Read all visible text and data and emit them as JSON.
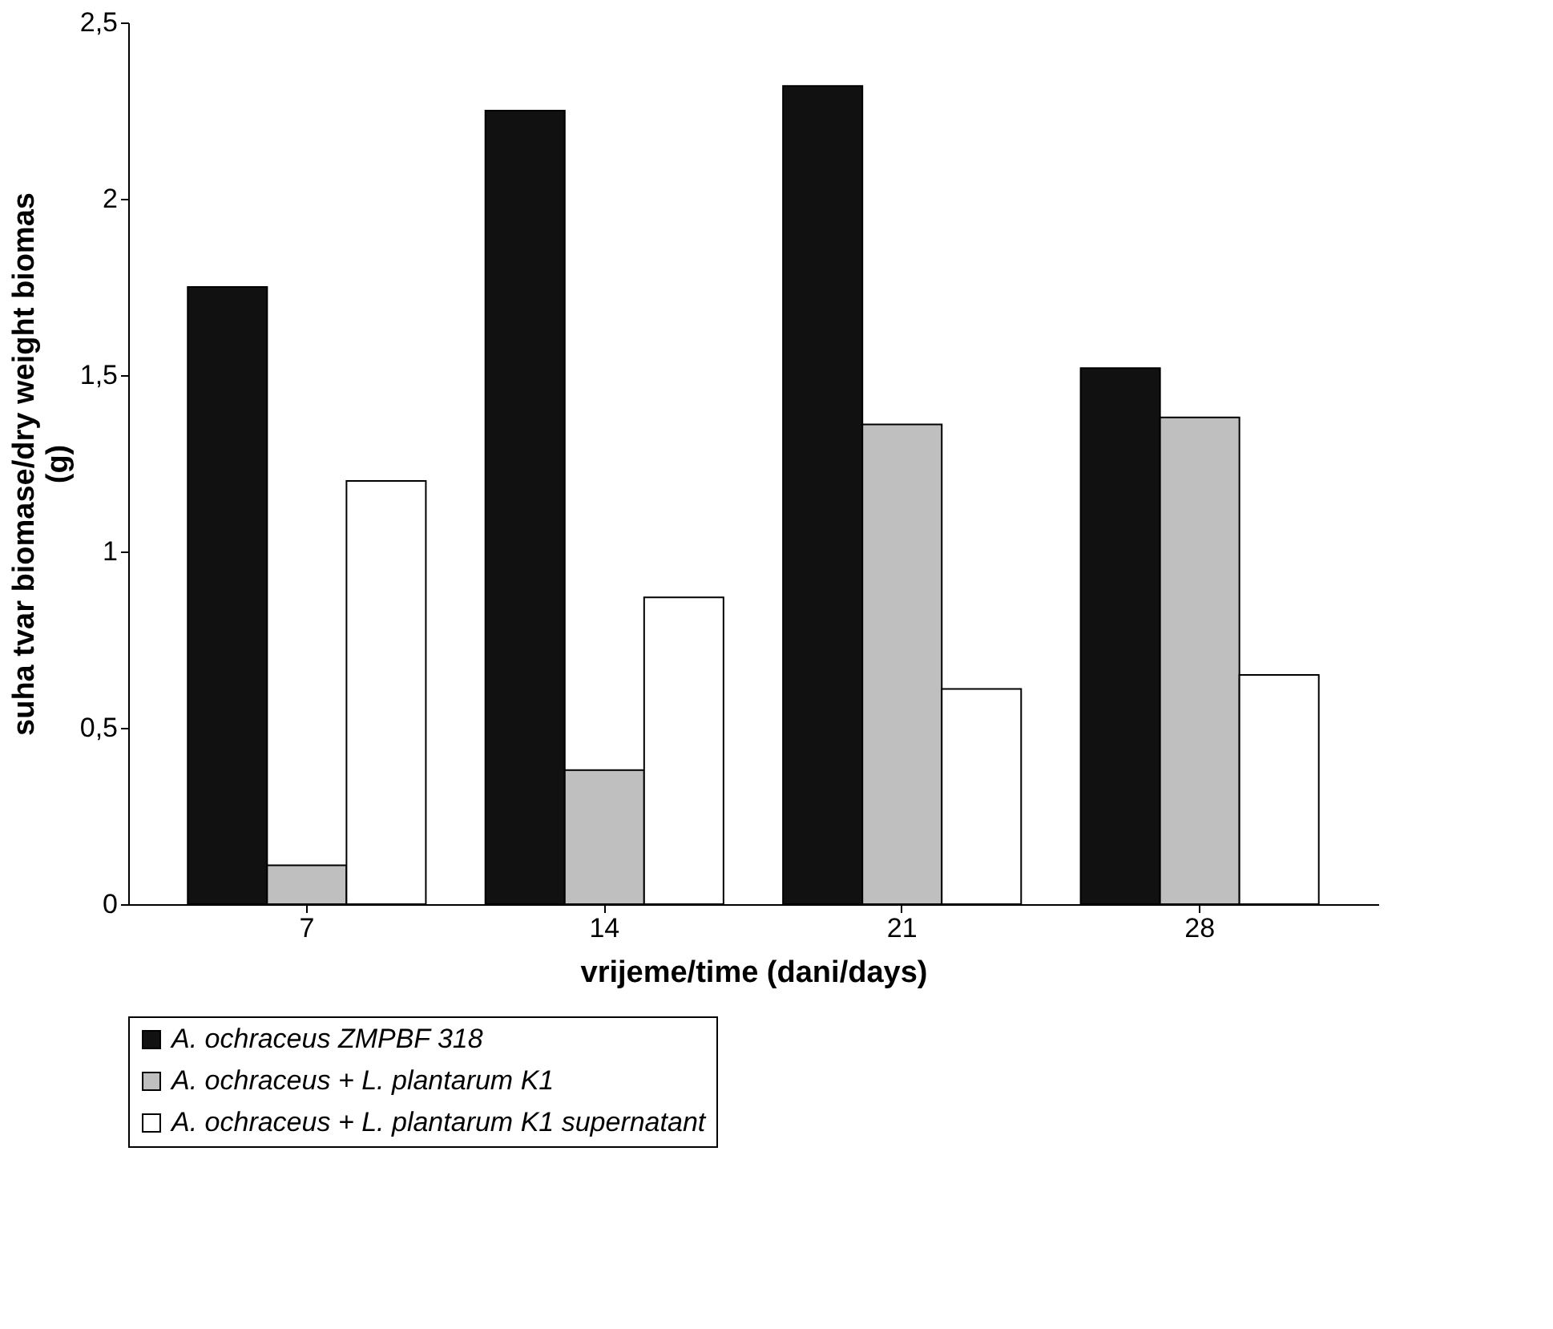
{
  "chart_data": {
    "type": "bar",
    "xlabel": "vrijeme/time (dani/days)",
    "ylabel": "suha tvar biomase/dry weight biomas (g)",
    "categories": [
      "7",
      "14",
      "21",
      "28"
    ],
    "series": [
      {
        "name": "A. ochraceus ZMPBF 318",
        "color": "#111111",
        "values": [
          1.75,
          2.25,
          2.32,
          1.52
        ]
      },
      {
        "name": "A. ochraceus + L. plantarum K1",
        "color": "#bfbfbf",
        "values": [
          0.11,
          0.38,
          1.36,
          1.38
        ]
      },
      {
        "name": "A. ochraceus + L. plantarum K1 supernatant",
        "color": "#ffffff",
        "values": [
          1.2,
          0.87,
          0.61,
          0.65
        ]
      }
    ],
    "ylim": [
      0,
      2.5
    ],
    "yticks": [
      0,
      {
        "value": 0.5,
        "label": "0,5"
      },
      1,
      {
        "value": 1.5,
        "label": "1,5"
      },
      2,
      {
        "value": 2.5,
        "label": "2,5"
      }
    ],
    "grid": false,
    "legend": "bottom"
  }
}
